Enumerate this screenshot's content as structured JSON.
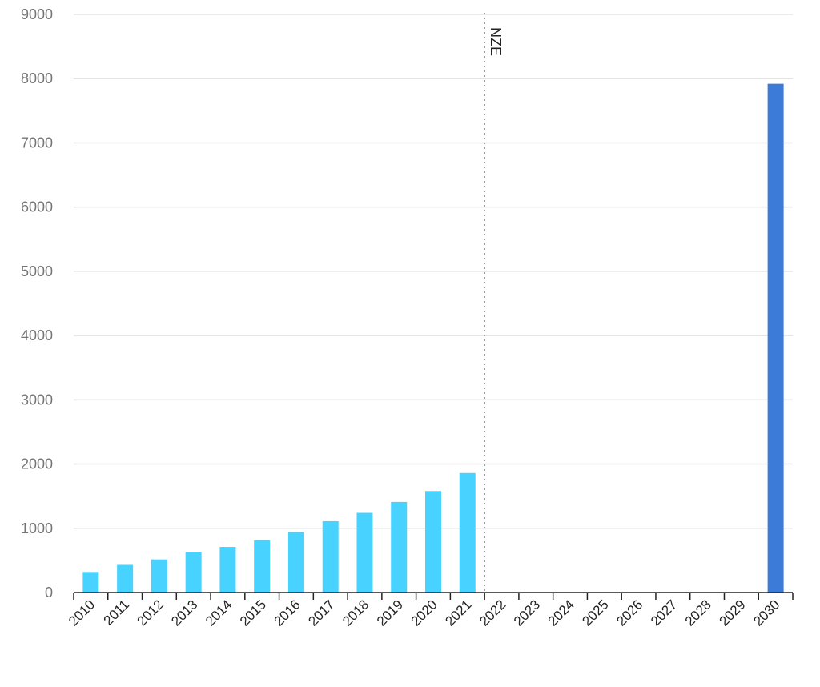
{
  "chart_data": {
    "type": "bar",
    "title": "",
    "xlabel": "",
    "ylabel": "",
    "ylim": [
      0,
      9000
    ],
    "yticks": [
      0,
      1000,
      2000,
      3000,
      4000,
      5000,
      6000,
      7000,
      8000,
      9000
    ],
    "grid": true,
    "categories": [
      "2010",
      "2011",
      "2012",
      "2013",
      "2014",
      "2015",
      "2016",
      "2017",
      "2018",
      "2019",
      "2020",
      "2021",
      "2022",
      "2023",
      "2024",
      "2025",
      "2026",
      "2027",
      "2028",
      "2029",
      "2030"
    ],
    "series": [
      {
        "color": "#48d2ff",
        "values": [
          320,
          430,
          515,
          625,
          710,
          815,
          940,
          1110,
          1240,
          1410,
          1580,
          1860,
          null,
          null,
          null,
          null,
          null,
          null,
          null,
          null,
          null
        ]
      },
      {
        "color": "#3d7bd8",
        "values": [
          null,
          null,
          null,
          null,
          null,
          null,
          null,
          null,
          null,
          null,
          null,
          null,
          null,
          null,
          null,
          null,
          null,
          null,
          null,
          null,
          7920
        ]
      }
    ],
    "annotations": [
      {
        "text": "NZE",
        "at_category": "2022",
        "style": "dotted-vertical-line"
      }
    ]
  }
}
